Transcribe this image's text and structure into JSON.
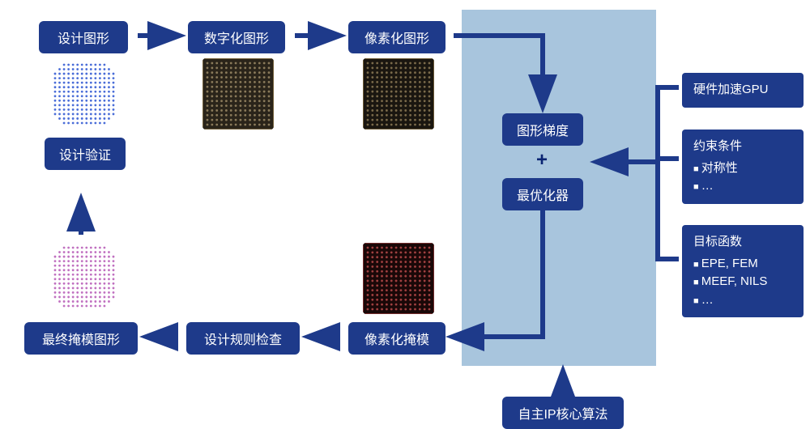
{
  "colors": {
    "node_bg": "#1e3a8a",
    "node_fg": "#ffffff",
    "panel_bg": "#1e3a8a",
    "panel_fg": "#ffffff",
    "highlight_bg": "#a8c5dd",
    "arrow": "#1e3a8a",
    "plus": "#0a2472",
    "page_bg": "#ffffff"
  },
  "nodes": {
    "design": "设计图形",
    "digitize": "数字化图形",
    "pixelize": "像素化图形",
    "verify": "设计验证",
    "gradient": "图形梯度",
    "optimizer": "最优化器",
    "finalmask": "最终掩模图形",
    "drc": "设计规则检查",
    "pixmask": "像素化掩模",
    "ipcore": "自主IP核心算法"
  },
  "panels": {
    "gpu": {
      "title": "硬件加速GPU"
    },
    "constraints": {
      "title": "约束条件",
      "items": [
        "对称性",
        "…"
      ]
    },
    "objective": {
      "title": "目标函数",
      "items": [
        "EPE, FEM",
        "MEEF, NILS",
        "…"
      ]
    }
  },
  "thumbs": {
    "design": {
      "bg": "#ffffff",
      "dots": "#4a6dd8",
      "border": "none"
    },
    "digitize": {
      "bg": "#2a241a",
      "dots": "#8a7a5a",
      "border": "1px solid #c0a060"
    },
    "pixelize": {
      "bg": "#1a1610",
      "dots": "#7a6a4a",
      "border": "1px solid #c0a060"
    },
    "pixmask": {
      "bg": "#1a0808",
      "dots": "#a04040",
      "border": "1px solid #d05050"
    },
    "finalmask": {
      "bg": "#ffffff",
      "dots": "#c070c0",
      "border": "none"
    }
  },
  "layout": {
    "node_fontsize": 16,
    "panel_fontsize": 15,
    "node_radius": 6
  }
}
